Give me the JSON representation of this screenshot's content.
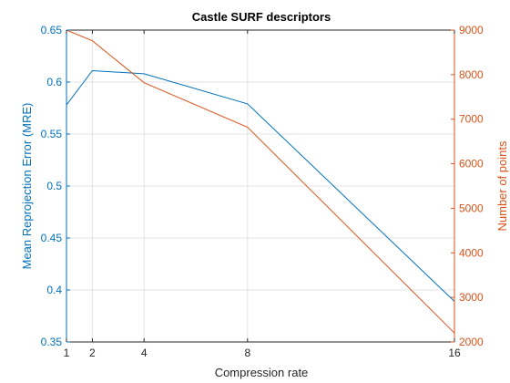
{
  "chart_data": {
    "type": "line",
    "title": "Castle SURF descriptors",
    "xlabel": "Compression rate",
    "ylabel_left": "Mean Reprojection Error (MRE)",
    "ylabel_right": "Number of points",
    "xlim": [
      1,
      16
    ],
    "ylim_left": [
      0.35,
      0.65
    ],
    "ylim_right": [
      2000,
      9000
    ],
    "x_ticks": [
      1,
      2,
      4,
      8,
      16
    ],
    "y_ticks_left": [
      0.35,
      0.4,
      0.45,
      0.5,
      0.55,
      0.6,
      0.65
    ],
    "y_ticks_right": [
      2000,
      3000,
      4000,
      5000,
      6000,
      7000,
      8000,
      9000
    ],
    "grid": true,
    "legend": "none",
    "x": [
      1,
      2,
      4,
      8,
      16
    ],
    "series": [
      {
        "axis": "left",
        "values": [
          0.578,
          0.611,
          0.608,
          0.579,
          0.389
        ]
      },
      {
        "axis": "right",
        "values": [
          9000,
          8760,
          7820,
          6820,
          2200
        ]
      }
    ],
    "colors": {
      "left": "#0072BD",
      "right": "#D95319",
      "grid": "#e3e3e3",
      "text": "#000000"
    }
  }
}
